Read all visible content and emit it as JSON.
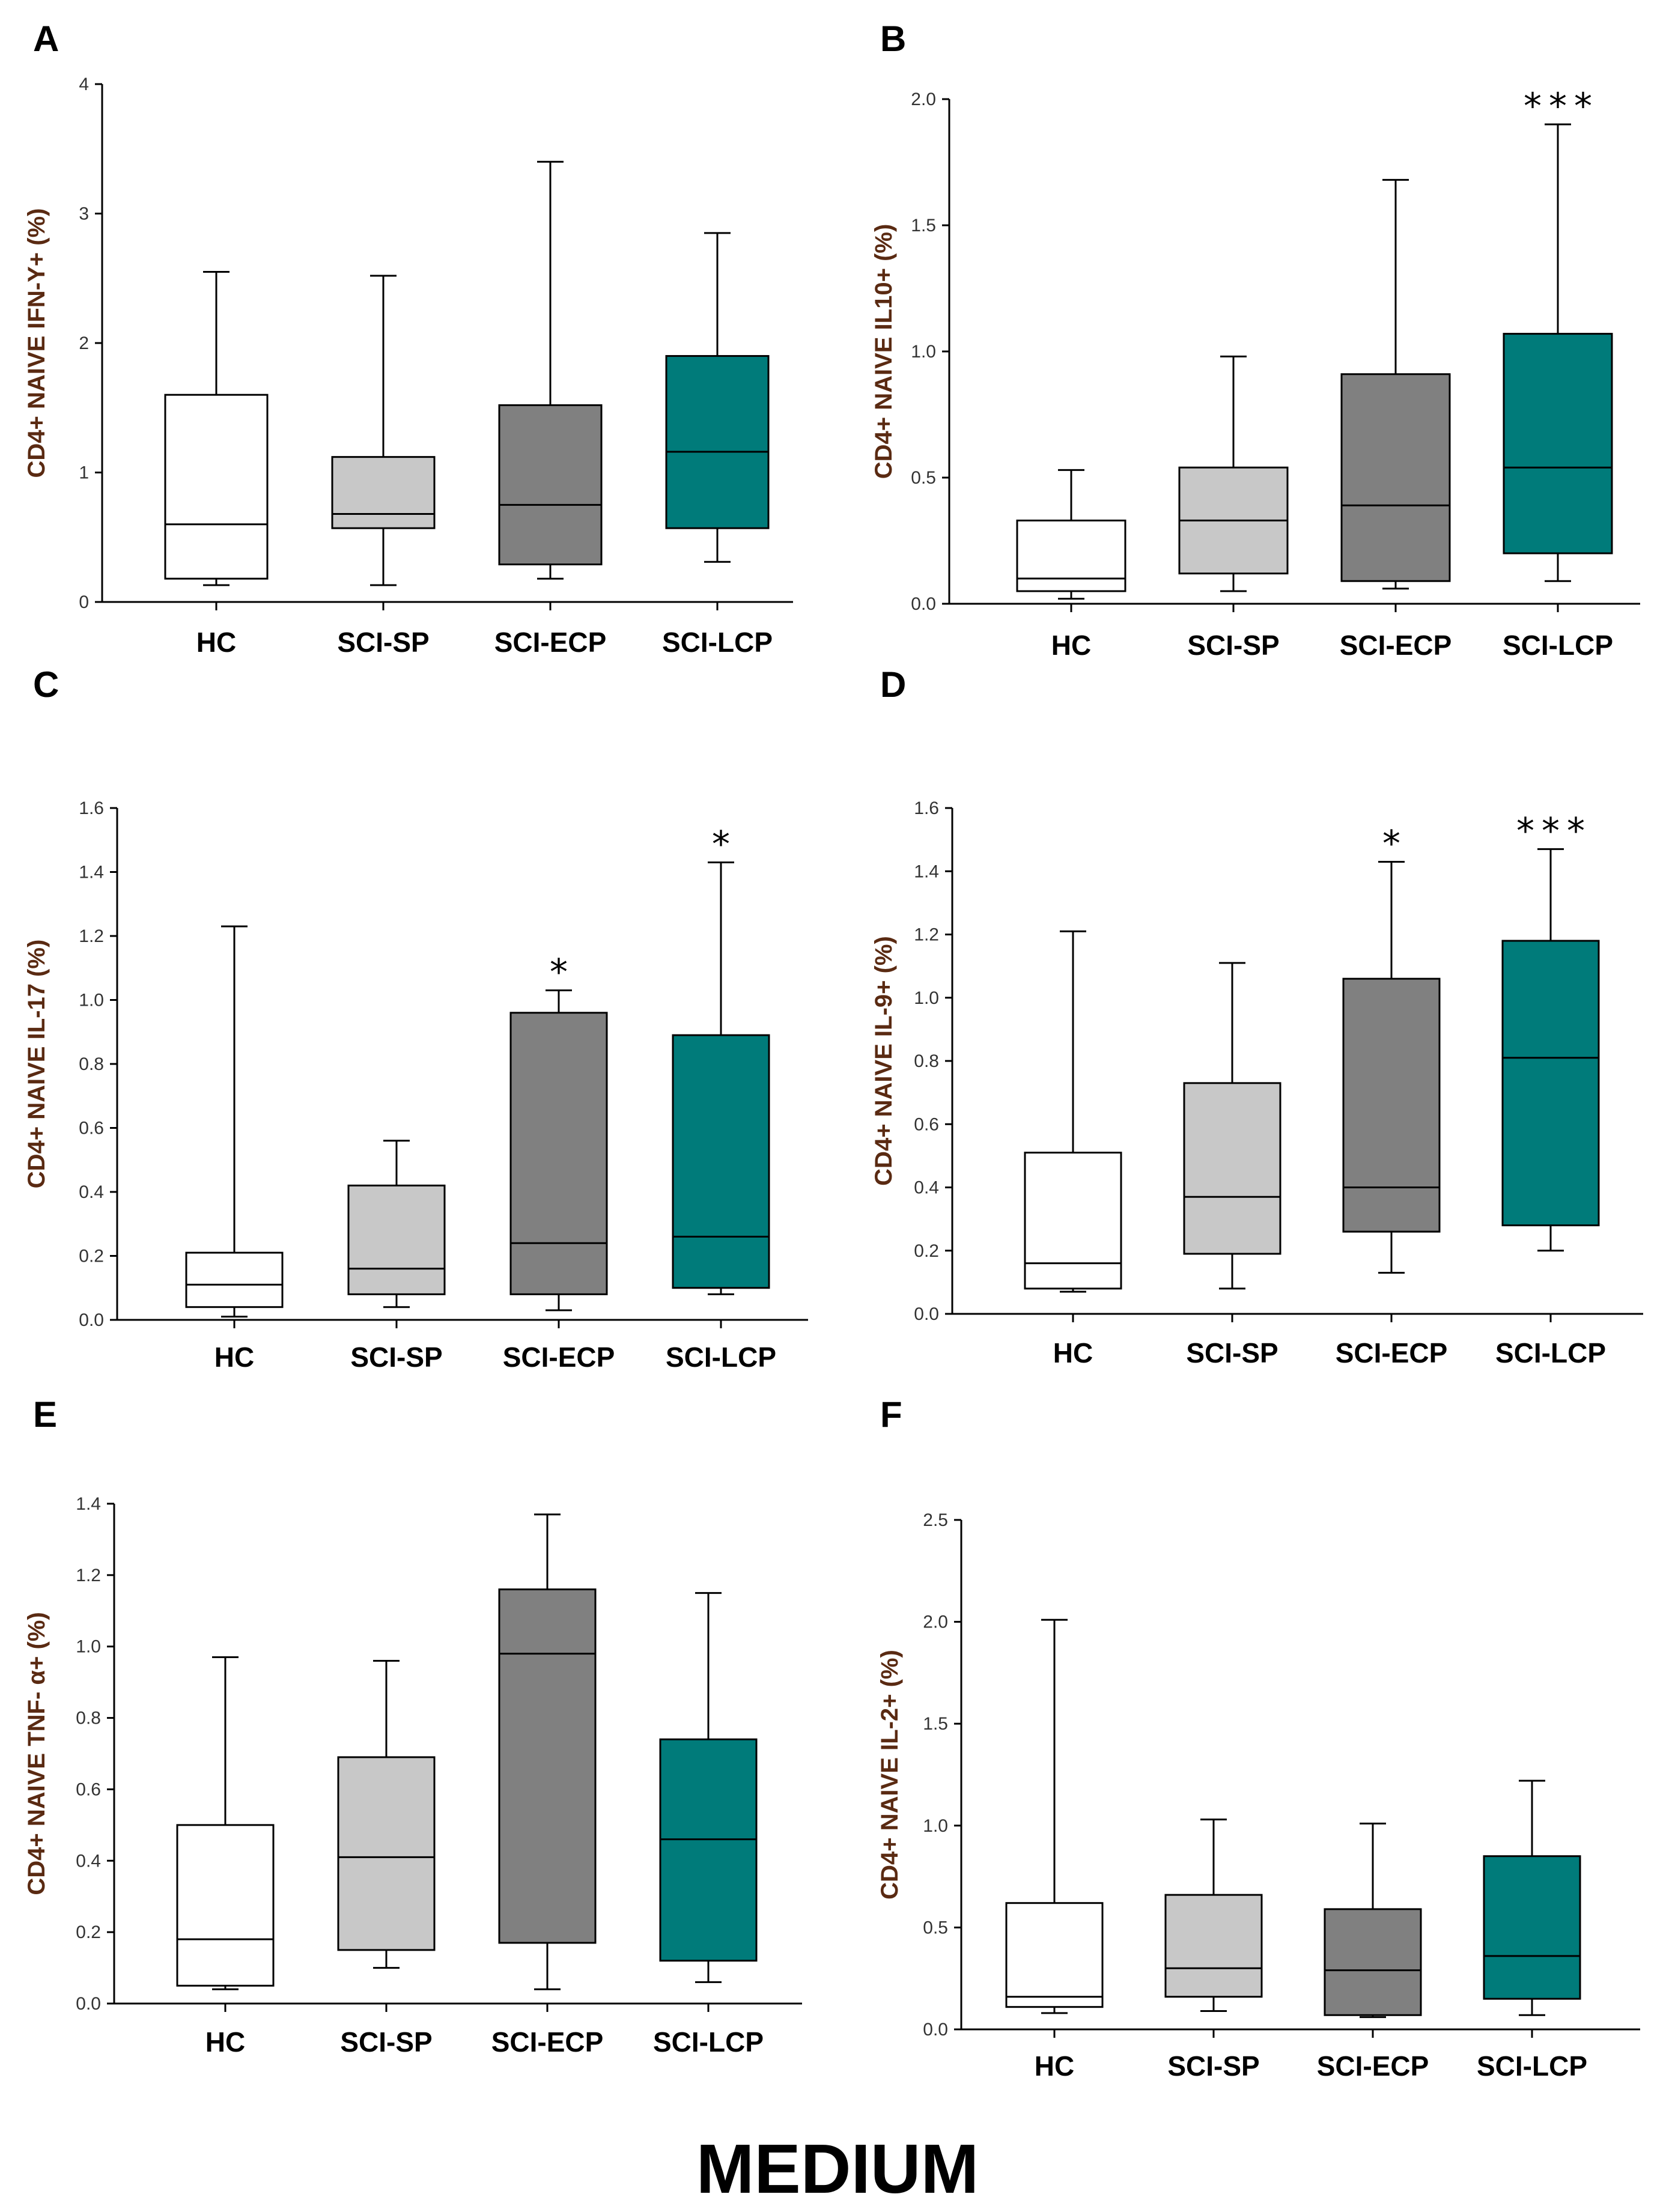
{
  "figure_title": "MEDIUM",
  "categories": [
    "HC",
    "SCI-SP",
    "SCI-ECP",
    "SCI-LCP"
  ],
  "colors": {
    "HC": "#ffffff",
    "SCI-SP": "#c8c8c8",
    "SCI-ECP": "#808080",
    "SCI-LCP": "#007b7a"
  },
  "chart_data": [
    {
      "panel": "A",
      "type": "box",
      "ylabel": "CD4+ NAIVE IFN-Y+ (%)",
      "ylim": [
        0,
        4
      ],
      "yticks": [
        "0",
        "1",
        "2",
        "3",
        "4"
      ],
      "categories": [
        "HC",
        "SCI-SP",
        "SCI-ECP",
        "SCI-LCP"
      ],
      "boxes": [
        {
          "min": 0.13,
          "q1": 0.18,
          "median": 0.6,
          "q3": 1.6,
          "max": 2.55,
          "sig": ""
        },
        {
          "min": 0.13,
          "q1": 0.57,
          "median": 0.68,
          "q3": 1.12,
          "max": 2.52,
          "sig": ""
        },
        {
          "min": 0.18,
          "q1": 0.29,
          "median": 0.75,
          "q3": 1.52,
          "max": 3.4,
          "sig": ""
        },
        {
          "min": 0.31,
          "q1": 0.57,
          "median": 1.16,
          "q3": 1.9,
          "max": 2.85,
          "sig": ""
        }
      ]
    },
    {
      "panel": "B",
      "type": "box",
      "ylabel": "CD4+ NAIVE IL10+ (%)",
      "ylim": [
        0,
        2
      ],
      "yticks": [
        "0.0",
        "0.5",
        "1.0",
        "1.5",
        "2.0"
      ],
      "categories": [
        "HC",
        "SCI-SP",
        "SCI-ECP",
        "SCI-LCP"
      ],
      "boxes": [
        {
          "min": 0.02,
          "q1": 0.05,
          "median": 0.1,
          "q3": 0.33,
          "max": 0.53,
          "sig": ""
        },
        {
          "min": 0.05,
          "q1": 0.12,
          "median": 0.33,
          "q3": 0.54,
          "max": 0.98,
          "sig": ""
        },
        {
          "min": 0.06,
          "q1": 0.09,
          "median": 0.39,
          "q3": 0.91,
          "max": 1.68,
          "sig": ""
        },
        {
          "min": 0.09,
          "q1": 0.2,
          "median": 0.54,
          "q3": 1.07,
          "max": 1.9,
          "sig": "***"
        }
      ]
    },
    {
      "panel": "C",
      "type": "box",
      "ylabel": "CD4+ NAIVE IL-17 (%)",
      "ylim": [
        0,
        1.6
      ],
      "yticks": [
        "0.0",
        "0.2",
        "0.4",
        "0.6",
        "0.8",
        "1.0",
        "1.2",
        "1.4",
        "1.6"
      ],
      "categories": [
        "HC",
        "SCI-SP",
        "SCI-ECP",
        "SCI-LCP"
      ],
      "boxes": [
        {
          "min": 0.01,
          "q1": 0.04,
          "median": 0.11,
          "q3": 0.21,
          "max": 1.23,
          "sig": ""
        },
        {
          "min": 0.04,
          "q1": 0.08,
          "median": 0.16,
          "q3": 0.42,
          "max": 0.56,
          "sig": ""
        },
        {
          "min": 0.03,
          "q1": 0.08,
          "median": 0.24,
          "q3": 0.96,
          "max": 1.03,
          "sig": "*"
        },
        {
          "min": 0.08,
          "q1": 0.1,
          "median": 0.26,
          "q3": 0.89,
          "max": 1.43,
          "sig": "*"
        }
      ]
    },
    {
      "panel": "D",
      "type": "box",
      "ylabel": "CD4+ NAIVE IL-9+ (%)",
      "ylim": [
        0,
        1.6
      ],
      "yticks": [
        "0.0",
        "0.2",
        "0.4",
        "0.6",
        "0.8",
        "1.0",
        "1.2",
        "1.4",
        "1.6"
      ],
      "categories": [
        "HC",
        "SCI-SP",
        "SCI-ECP",
        "SCI-LCP"
      ],
      "boxes": [
        {
          "min": 0.07,
          "q1": 0.08,
          "median": 0.16,
          "q3": 0.51,
          "max": 1.21,
          "sig": ""
        },
        {
          "min": 0.08,
          "q1": 0.19,
          "median": 0.37,
          "q3": 0.73,
          "max": 1.11,
          "sig": ""
        },
        {
          "min": 0.13,
          "q1": 0.26,
          "median": 0.4,
          "q3": 1.06,
          "max": 1.43,
          "sig": "*"
        },
        {
          "min": 0.2,
          "q1": 0.28,
          "median": 0.81,
          "q3": 1.18,
          "max": 1.47,
          "sig": "***"
        }
      ]
    },
    {
      "panel": "E",
      "type": "box",
      "ylabel": "CD4+ NAIVE TNF- α+ (%)",
      "ylim": [
        0,
        1.4
      ],
      "yticks": [
        "0.0",
        "0.2",
        "0.4",
        "0.6",
        "0.8",
        "1.0",
        "1.2",
        "1.4"
      ],
      "categories": [
        "HC",
        "SCI-SP",
        "SCI-ECP",
        "SCI-LCP"
      ],
      "boxes": [
        {
          "min": 0.04,
          "q1": 0.05,
          "median": 0.18,
          "q3": 0.5,
          "max": 0.97,
          "sig": ""
        },
        {
          "min": 0.1,
          "q1": 0.15,
          "median": 0.41,
          "q3": 0.69,
          "max": 0.96,
          "sig": ""
        },
        {
          "min": 0.04,
          "q1": 0.17,
          "median": 0.98,
          "q3": 1.16,
          "max": 1.37,
          "sig": ""
        },
        {
          "min": 0.06,
          "q1": 0.12,
          "median": 0.46,
          "q3": 0.74,
          "max": 1.15,
          "sig": ""
        }
      ]
    },
    {
      "panel": "F",
      "type": "box",
      "ylabel": "CD4+ NAIVE IL-2+ (%)",
      "ylim": [
        0,
        2.5
      ],
      "yticks": [
        "0.0",
        "0.5",
        "1.0",
        "1.5",
        "2.0",
        "2.5"
      ],
      "categories": [
        "HC",
        "SCI-SP",
        "SCI-ECP",
        "SCI-LCP"
      ],
      "boxes": [
        {
          "min": 0.08,
          "q1": 0.11,
          "median": 0.16,
          "q3": 0.62,
          "max": 2.01,
          "sig": ""
        },
        {
          "min": 0.09,
          "q1": 0.16,
          "median": 0.3,
          "q3": 0.66,
          "max": 1.03,
          "sig": ""
        },
        {
          "min": 0.06,
          "q1": 0.07,
          "median": 0.29,
          "q3": 0.59,
          "max": 1.01,
          "sig": ""
        },
        {
          "min": 0.07,
          "q1": 0.15,
          "median": 0.36,
          "q3": 0.85,
          "max": 1.22,
          "sig": ""
        }
      ]
    }
  ]
}
